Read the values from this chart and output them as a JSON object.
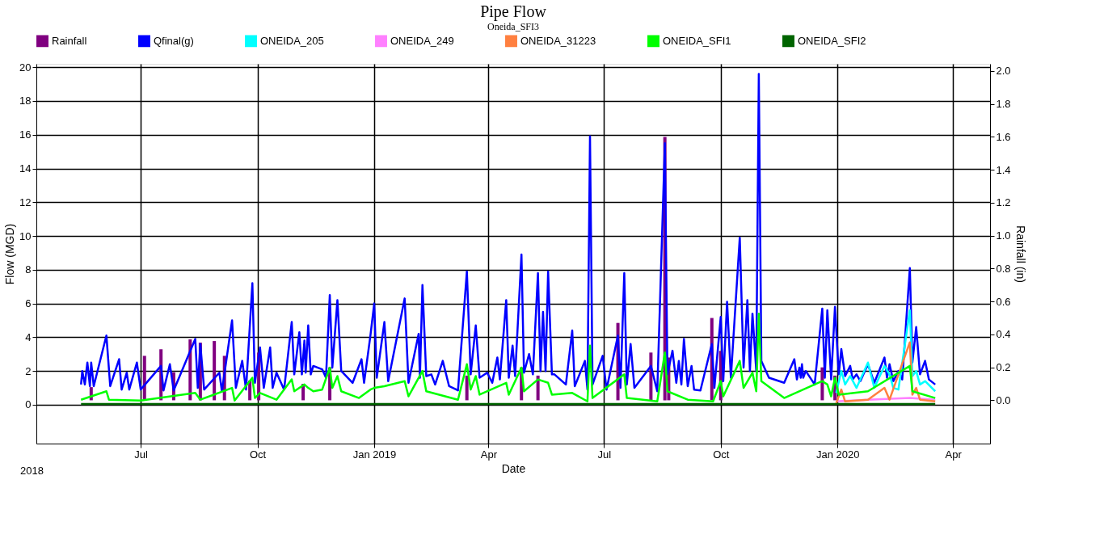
{
  "chart_data": {
    "type": "line",
    "title": "Pipe Flow",
    "subtitle": "Oneida_SFI3",
    "xlabel": "Date",
    "ylabel": "Flow (MGD)",
    "y2label": "Rainfall (in)",
    "annotations": [
      "2018"
    ],
    "xlim": [
      "2018-04-13",
      "2020-04-27"
    ],
    "xticks": [
      {
        "value": "2018-07-01",
        "label": "Jul"
      },
      {
        "value": "2018-10-01",
        "label": "Oct"
      },
      {
        "value": "2019-01-01",
        "label": "Jan 2019"
      },
      {
        "value": "2019-04-01",
        "label": "Apr"
      },
      {
        "value": "2019-07-01",
        "label": "Jul"
      },
      {
        "value": "2019-10-01",
        "label": "Oct"
      },
      {
        "value": "2020-01-01",
        "label": "Jan 2020"
      },
      {
        "value": "2020-04-01",
        "label": "Apr"
      }
    ],
    "ylim": [
      -2.3,
      20.2
    ],
    "yticks": [
      0,
      2,
      4,
      6,
      8,
      10,
      12,
      14,
      16,
      18,
      20
    ],
    "y2lim": [
      -0.263,
      2.044
    ],
    "y2ticks": [
      {
        "value": 0,
        "label": "0.0"
      },
      {
        "value": 0.2,
        "label": "0.2"
      },
      {
        "value": 0.4,
        "label": "0.4"
      },
      {
        "value": 0.6,
        "label": "0.6"
      },
      {
        "value": 0.8,
        "label": "0.8"
      },
      {
        "value": 1.0,
        "label": "1.0"
      },
      {
        "value": 1.2,
        "label": "1.2"
      },
      {
        "value": 1.4,
        "label": "1.4"
      },
      {
        "value": 1.6,
        "label": "1.6"
      },
      {
        "value": 1.8,
        "label": "1.8"
      },
      {
        "value": 2.0,
        "label": "2.0"
      }
    ],
    "grid": true,
    "legend": "top",
    "series": [
      {
        "name": "Rainfall",
        "type": "bar",
        "axis": "y2",
        "color": "#800080",
        "x": [
          "2018-05-23",
          "2018-07-04",
          "2018-07-17",
          "2018-07-27",
          "2018-08-09",
          "2018-08-17",
          "2018-08-28",
          "2018-09-05",
          "2018-09-25",
          "2018-10-02",
          "2018-11-06",
          "2018-11-27",
          "2019-03-15",
          "2019-04-27",
          "2019-05-10",
          "2019-07-12",
          "2019-08-07",
          "2019-08-18",
          "2019-08-21",
          "2019-09-24",
          "2019-10-01",
          "2019-12-20",
          "2019-12-30"
        ],
        "values": [
          0.08,
          0.27,
          0.31,
          0.17,
          0.37,
          0.35,
          0.36,
          0.27,
          0.12,
          0.29,
          0.1,
          0.2,
          0.15,
          0.2,
          0.15,
          0.47,
          0.29,
          1.6,
          0.26,
          0.5,
          0.3,
          0.2,
          0.15
        ]
      },
      {
        "name": "Qfinal(g)",
        "type": "line",
        "color": "#0000ff",
        "x": [
          "2018-05-15",
          "2018-05-16",
          "2018-05-18",
          "2018-05-20",
          "2018-05-22",
          "2018-05-23",
          "2018-05-25",
          "2018-06-04",
          "2018-06-07",
          "2018-06-14",
          "2018-06-16",
          "2018-06-20",
          "2018-06-22",
          "2018-06-28",
          "2018-07-01",
          "2018-07-17",
          "2018-07-19",
          "2018-07-24",
          "2018-07-27",
          "2018-08-13",
          "2018-08-15",
          "2018-08-17",
          "2018-08-20",
          "2018-09-01",
          "2018-09-03",
          "2018-09-11",
          "2018-09-14",
          "2018-09-19",
          "2018-09-22",
          "2018-09-27",
          "2018-09-29",
          "2018-10-03",
          "2018-10-06",
          "2018-10-11",
          "2018-10-13",
          "2018-10-16",
          "2018-10-22",
          "2018-10-28",
          "2018-10-30",
          "2018-11-03",
          "2018-11-05",
          "2018-11-07",
          "2018-11-08",
          "2018-11-10",
          "2018-11-12",
          "2018-11-14",
          "2018-11-21",
          "2018-11-24",
          "2018-11-27",
          "2018-11-29",
          "2018-12-03",
          "2018-12-06",
          "2018-12-15",
          "2018-12-22",
          "2018-12-24",
          "2018-12-29",
          "2019-01-01",
          "2019-01-03",
          "2019-01-09",
          "2019-01-12",
          "2019-01-25",
          "2019-01-28",
          "2019-02-05",
          "2019-02-06",
          "2019-02-08",
          "2019-02-11",
          "2019-02-15",
          "2019-02-18",
          "2019-02-24",
          "2019-03-01",
          "2019-03-08",
          "2019-03-15",
          "2019-03-18",
          "2019-03-22",
          "2019-03-25",
          "2019-03-31",
          "2019-04-04",
          "2019-04-08",
          "2019-04-10",
          "2019-04-15",
          "2019-04-17",
          "2019-04-20",
          "2019-04-22",
          "2019-04-27",
          "2019-04-29",
          "2019-05-03",
          "2019-05-06",
          "2019-05-10",
          "2019-05-12",
          "2019-05-14",
          "2019-05-16",
          "2019-05-18",
          "2019-05-21",
          "2019-05-23",
          "2019-06-01",
          "2019-06-06",
          "2019-06-08",
          "2019-06-16",
          "2019-06-18",
          "2019-06-20",
          "2019-06-22",
          "2019-06-30",
          "2019-07-03",
          "2019-07-12",
          "2019-07-14",
          "2019-07-17",
          "2019-07-19",
          "2019-07-22",
          "2019-07-25",
          "2019-08-07",
          "2019-08-12",
          "2019-08-18",
          "2019-08-20",
          "2019-08-24",
          "2019-08-27",
          "2019-08-29",
          "2019-08-31",
          "2019-09-02",
          "2019-09-05",
          "2019-09-08",
          "2019-09-10",
          "2019-09-15",
          "2019-09-24",
          "2019-09-26",
          "2019-10-01",
          "2019-10-03",
          "2019-10-06",
          "2019-10-09",
          "2019-10-16",
          "2019-10-19",
          "2019-10-22",
          "2019-10-24",
          "2019-10-26",
          "2019-10-29",
          "2019-10-31",
          "2019-11-02",
          "2019-11-08",
          "2019-11-20",
          "2019-11-28",
          "2019-11-30",
          "2019-12-02",
          "2019-12-03",
          "2019-12-04",
          "2019-12-05",
          "2019-12-07",
          "2019-12-14",
          "2019-12-20",
          "2019-12-22",
          "2019-12-24",
          "2019-12-27",
          "2019-12-30",
          "2020-01-02",
          "2020-01-04",
          "2020-01-07",
          "2020-01-11",
          "2020-01-13",
          "2020-01-16",
          "2020-01-19",
          "2020-01-25",
          "2020-01-30",
          "2020-02-07",
          "2020-02-09",
          "2020-02-11",
          "2020-02-14",
          "2020-02-18",
          "2020-02-21",
          "2020-02-27",
          "2020-02-29",
          "2020-03-03",
          "2020-03-06",
          "2020-03-10",
          "2020-03-13",
          "2020-03-18"
        ],
        "values": [
          1.2,
          2.0,
          1.2,
          2.5,
          1.1,
          2.5,
          1.1,
          4.1,
          1.1,
          2.7,
          0.9,
          1.9,
          0.9,
          2.5,
          0.9,
          2.3,
          0.85,
          2.4,
          0.85,
          3.9,
          1.0,
          3.6,
          0.9,
          1.9,
          0.8,
          5.0,
          1.0,
          2.6,
          0.9,
          7.2,
          1.3,
          3.4,
          1.0,
          3.4,
          1.0,
          1.9,
          0.9,
          4.9,
          1.8,
          4.3,
          1.8,
          3.8,
          1.9,
          4.7,
          1.8,
          2.3,
          2.1,
          1.6,
          6.5,
          2.2,
          6.2,
          2.0,
          1.3,
          2.7,
          1.3,
          4.1,
          6.0,
          1.6,
          4.9,
          1.4,
          6.3,
          1.3,
          4.2,
          1.6,
          7.1,
          1.7,
          1.8,
          1.2,
          2.6,
          1.1,
          0.85,
          7.9,
          1.8,
          4.7,
          1.6,
          1.9,
          1.3,
          2.8,
          1.5,
          6.2,
          1.6,
          3.5,
          1.7,
          8.9,
          1.9,
          3.0,
          1.8,
          7.8,
          2.0,
          5.5,
          2.0,
          7.9,
          1.8,
          1.8,
          1.2,
          4.4,
          1.1,
          2.6,
          0.9,
          15.9,
          1.2,
          2.9,
          0.9,
          4.1,
          1.0,
          7.8,
          1.2,
          3.6,
          1.0,
          2.3,
          0.8,
          15.5,
          1.8,
          3.2,
          1.3,
          2.6,
          1.2,
          3.9,
          1.1,
          2.3,
          0.9,
          0.85,
          3.6,
          1.0,
          5.2,
          1.4,
          6.1,
          1.6,
          9.9,
          2.2,
          6.2,
          2.0,
          5.4,
          2.0,
          19.6,
          2.6,
          1.6,
          1.3,
          2.7,
          1.5,
          2.2,
          1.6,
          2.4,
          1.6,
          2.0,
          1.2,
          5.7,
          1.6,
          5.6,
          1.5,
          5.8,
          1.8,
          3.3,
          1.7,
          2.3,
          1.5,
          1.8,
          1.4,
          2.4,
          1.3,
          2.8,
          1.6,
          2.4,
          1.4,
          2.0,
          1.5,
          8.1,
          2.5,
          4.6,
          1.8,
          2.6,
          1.5,
          1.2
        ]
      },
      {
        "name": "ONEIDA_205",
        "type": "line",
        "color": "#00ffff",
        "x": [
          "2019-12-31",
          "2020-01-04",
          "2020-01-07",
          "2020-01-11",
          "2020-01-16",
          "2020-01-25",
          "2020-01-30",
          "2020-02-07",
          "2020-02-11",
          "2020-02-14",
          "2020-02-18",
          "2020-02-27",
          "2020-02-29",
          "2020-03-03",
          "2020-03-06",
          "2020-03-10",
          "2020-03-18"
        ],
        "values": [
          0.7,
          2.0,
          1.2,
          1.7,
          1.0,
          2.5,
          1.0,
          2.3,
          1.8,
          1.0,
          0.9,
          5.6,
          1.7,
          2.0,
          1.2,
          1.4,
          0.8
        ]
      },
      {
        "name": "ONEIDA_249",
        "type": "line",
        "color": "#ff80ff",
        "x": [
          "2019-12-31",
          "2020-01-25",
          "2020-02-27",
          "2020-03-18"
        ],
        "values": [
          0.2,
          0.3,
          0.4,
          0.3
        ]
      },
      {
        "name": "ONEIDA_31223",
        "type": "line",
        "color": "#ff8040",
        "x": [
          "2019-12-31",
          "2020-01-04",
          "2020-01-07",
          "2020-01-25",
          "2020-02-07",
          "2020-02-11",
          "2020-02-27",
          "2020-02-29",
          "2020-03-03",
          "2020-03-06",
          "2020-03-18"
        ],
        "values": [
          0.1,
          0.9,
          0.2,
          0.3,
          1.0,
          0.3,
          3.7,
          0.6,
          1.0,
          0.3,
          0.2
        ]
      },
      {
        "name": "ONEIDA_SFI1",
        "type": "line",
        "color": "#00ff00",
        "x": [
          "2018-05-15",
          "2018-06-04",
          "2018-06-06",
          "2018-07-01",
          "2018-08-13",
          "2018-08-17",
          "2018-09-11",
          "2018-09-13",
          "2018-09-27",
          "2018-09-29",
          "2018-10-03",
          "2018-10-16",
          "2018-10-28",
          "2018-10-30",
          "2018-11-07",
          "2018-11-10",
          "2018-11-14",
          "2018-11-21",
          "2018-11-27",
          "2018-11-29",
          "2018-12-03",
          "2018-12-06",
          "2018-12-20",
          "2018-12-29",
          "2019-01-01",
          "2019-01-09",
          "2019-01-25",
          "2019-01-28",
          "2019-02-08",
          "2019-02-11",
          "2019-03-08",
          "2019-03-15",
          "2019-03-18",
          "2019-03-22",
          "2019-03-25",
          "2019-04-15",
          "2019-04-17",
          "2019-04-27",
          "2019-04-29",
          "2019-05-10",
          "2019-05-18",
          "2019-05-21",
          "2019-06-06",
          "2019-06-18",
          "2019-06-20",
          "2019-06-22",
          "2019-07-17",
          "2019-07-19",
          "2019-08-12",
          "2019-08-18",
          "2019-08-20",
          "2019-09-05",
          "2019-09-25",
          "2019-10-01",
          "2019-10-03",
          "2019-10-16",
          "2019-10-19",
          "2019-10-26",
          "2019-10-29",
          "2019-10-31",
          "2019-11-02",
          "2019-11-20",
          "2019-12-20",
          "2019-12-24",
          "2019-12-27",
          "2019-12-30",
          "2020-01-02",
          "2020-01-25",
          "2020-02-27",
          "2020-02-29",
          "2020-03-18"
        ],
        "values": [
          0.3,
          0.8,
          0.3,
          0.25,
          0.7,
          0.3,
          1.0,
          0.25,
          1.6,
          0.4,
          0.7,
          0.3,
          1.5,
          0.8,
          1.2,
          1.0,
          0.8,
          0.9,
          2.2,
          1.0,
          1.7,
          0.8,
          0.4,
          0.9,
          1.0,
          1.1,
          1.4,
          0.5,
          2.0,
          0.8,
          0.3,
          2.4,
          0.9,
          1.7,
          0.6,
          1.3,
          0.6,
          2.2,
          0.8,
          1.5,
          1.3,
          0.6,
          0.7,
          0.2,
          3.5,
          0.4,
          1.8,
          0.4,
          0.2,
          3.1,
          0.8,
          0.3,
          0.2,
          1.4,
          0.5,
          2.6,
          1.0,
          1.9,
          0.8,
          5.4,
          1.4,
          0.4,
          1.4,
          1.2,
          0.5,
          1.6,
          0.6,
          0.8,
          2.3,
          0.8,
          0.4
        ]
      },
      {
        "name": "ONEIDA_SFI2",
        "type": "line",
        "color": "#006400",
        "x": [
          "2018-05-15",
          "2020-03-18"
        ],
        "values": [
          0.05,
          0.05
        ]
      }
    ]
  }
}
